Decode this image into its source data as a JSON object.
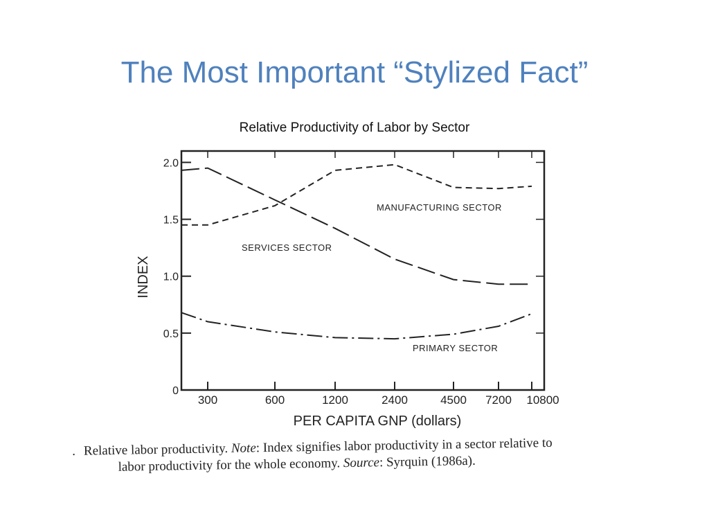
{
  "slide": {
    "title": "The Most Important “Stylized Fact”"
  },
  "chart_data": {
    "type": "line",
    "title": "Relative Productivity of Labor by Sector",
    "xlabel": "PER CAPITA GNP (dollars)",
    "ylabel": "INDEX",
    "x_ticks": [
      "300",
      "600",
      "1200",
      "2400",
      "4500",
      "7200",
      "10800"
    ],
    "y_ticks": [
      "0",
      "0.5",
      "1.0",
      "1.5",
      "2.0"
    ],
    "ylim": [
      0,
      2.1
    ],
    "grid": false,
    "series": [
      {
        "name": "MANUFACTURING SECTOR",
        "style": "dashed",
        "points": [
          [
            200,
            1.45
          ],
          [
            300,
            1.45
          ],
          [
            600,
            1.62
          ],
          [
            1200,
            1.93
          ],
          [
            2400,
            1.98
          ],
          [
            4500,
            1.78
          ],
          [
            7200,
            1.77
          ],
          [
            10800,
            1.79
          ]
        ]
      },
      {
        "name": "SERVICES SECTOR",
        "style": "long-dashed",
        "points": [
          [
            200,
            1.93
          ],
          [
            300,
            1.95
          ],
          [
            600,
            1.67
          ],
          [
            1200,
            1.42
          ],
          [
            2400,
            1.15
          ],
          [
            4500,
            0.97
          ],
          [
            7200,
            0.93
          ],
          [
            10800,
            0.93
          ]
        ]
      },
      {
        "name": "PRIMARY SECTOR",
        "style": "dash-dot",
        "points": [
          [
            200,
            0.68
          ],
          [
            300,
            0.6
          ],
          [
            600,
            0.51
          ],
          [
            1200,
            0.46
          ],
          [
            2400,
            0.45
          ],
          [
            4500,
            0.49
          ],
          [
            7200,
            0.56
          ],
          [
            10800,
            0.67
          ]
        ]
      }
    ]
  },
  "caption": {
    "prefix": ".",
    "line1_a": "Relative labor productivity.",
    "note_label": "Note",
    "line1_b": ": Index signifies labor productivity in a sector relative to",
    "line2_a": "labor productivity for the whole economy.",
    "source_label": "Source",
    "line2_b": ": Syrquin (1986a)."
  }
}
